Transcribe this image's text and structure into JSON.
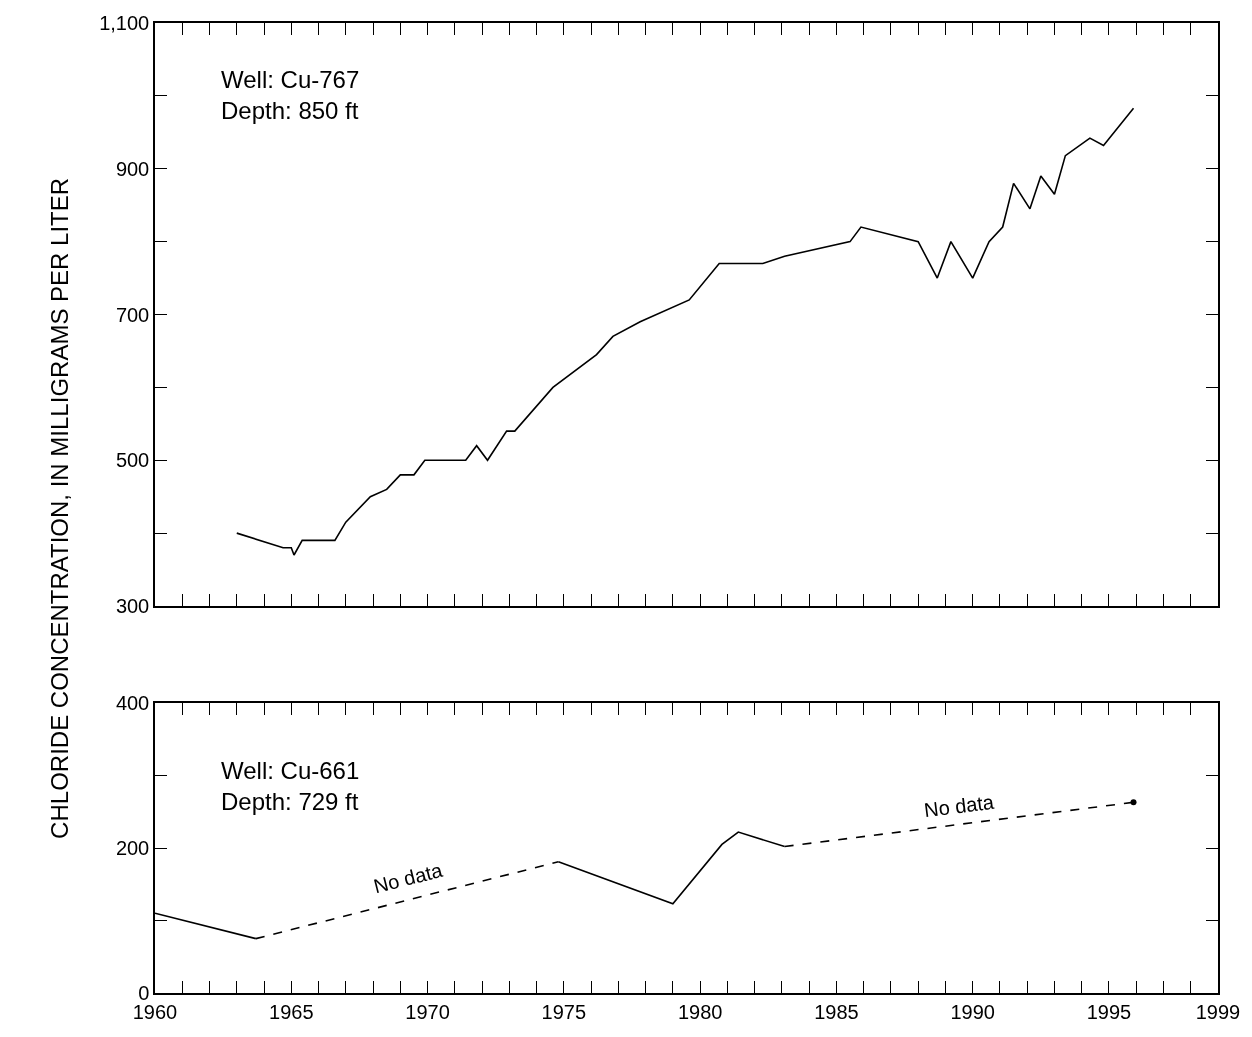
{
  "chart_data": [
    {
      "type": "line",
      "ylabel": "CHLORIDE CONCENTRATION, IN MILLIGRAMS PER LITER",
      "annotations": [
        "Well: Cu-767\nDepth: 850 ft"
      ],
      "xlim": [
        1960,
        1999
      ],
      "ylim": [
        300,
        1100
      ],
      "xticks": [
        {
          "value": 1960,
          "label": null
        },
        {
          "value": 1961,
          "label": null
        },
        {
          "value": 1962,
          "label": null
        },
        {
          "value": 1963,
          "label": null
        },
        {
          "value": 1964,
          "label": null
        },
        {
          "value": 1965,
          "label": null
        },
        {
          "value": 1966,
          "label": null
        },
        {
          "value": 1967,
          "label": null
        },
        {
          "value": 1968,
          "label": null
        },
        {
          "value": 1969,
          "label": null
        },
        {
          "value": 1970,
          "label": null
        },
        {
          "value": 1971,
          "label": null
        },
        {
          "value": 1972,
          "label": null
        },
        {
          "value": 1973,
          "label": null
        },
        {
          "value": 1974,
          "label": null
        },
        {
          "value": 1975,
          "label": null
        },
        {
          "value": 1976,
          "label": null
        },
        {
          "value": 1977,
          "label": null
        },
        {
          "value": 1978,
          "label": null
        },
        {
          "value": 1979,
          "label": null
        },
        {
          "value": 1980,
          "label": null
        },
        {
          "value": 1981,
          "label": null
        },
        {
          "value": 1982,
          "label": null
        },
        {
          "value": 1983,
          "label": null
        },
        {
          "value": 1984,
          "label": null
        },
        {
          "value": 1985,
          "label": null
        },
        {
          "value": 1986,
          "label": null
        },
        {
          "value": 1987,
          "label": null
        },
        {
          "value": 1988,
          "label": null
        },
        {
          "value": 1989,
          "label": null
        },
        {
          "value": 1990,
          "label": null
        },
        {
          "value": 1991,
          "label": null
        },
        {
          "value": 1992,
          "label": null
        },
        {
          "value": 1993,
          "label": null
        },
        {
          "value": 1994,
          "label": null
        },
        {
          "value": 1995,
          "label": null
        },
        {
          "value": 1996,
          "label": null
        },
        {
          "value": 1997,
          "label": null
        },
        {
          "value": 1998,
          "label": null
        },
        {
          "value": 1999,
          "label": null
        }
      ],
      "yticks": [
        300,
        {
          "value": 400,
          "label": null
        },
        500,
        {
          "value": 600,
          "label": null
        },
        700,
        {
          "value": 800,
          "label": null
        },
        900,
        {
          "value": 1000,
          "label": null
        },
        {
          "value": 1100,
          "label": "1,100"
        }
      ],
      "tick_labels": "y",
      "series": [
        {
          "color": "#000000",
          "line_style": "solid",
          "x": [
            1963.0,
            1964.7,
            1965.0,
            1965.1,
            1965.4,
            1966.6,
            1967.0,
            1967.9,
            1968.5,
            1969.0,
            1969.5,
            1969.9,
            1971.4,
            1971.8,
            1972.2,
            1972.9,
            1973.2,
            1974.6,
            1976.2,
            1976.8,
            1977.8,
            1979.6,
            1980.7,
            1982.3,
            1983.1,
            1985.5,
            1985.9,
            1988.0,
            1988.7,
            1989.2,
            1990.0,
            1990.6,
            1991.1,
            1991.5,
            1992.1,
            1992.5,
            1993.0,
            1993.4,
            1994.3,
            1994.8,
            1995.9
          ],
          "values": [
            400,
            380,
            380,
            370,
            390,
            390,
            415,
            450,
            460,
            480,
            480,
            500,
            500,
            520,
            500,
            540,
            540,
            600,
            645,
            670,
            690,
            720,
            770,
            770,
            780,
            800,
            820,
            800,
            750,
            800,
            750,
            800,
            820,
            880,
            845,
            890,
            865,
            918,
            942,
            932,
            983
          ]
        }
      ]
    },
    {
      "type": "line",
      "annotations": [
        "Well: Cu-661\nDepth: 729 ft",
        {
          "text": "No data",
          "x": 1969.3,
          "y": 128
        },
        {
          "text": "No data",
          "x": 1989.5,
          "y": 233
        }
      ],
      "xlim": [
        1960,
        1999
      ],
      "ylim": [
        0,
        400
      ],
      "xticks": [
        1960,
        {
          "value": 1961,
          "label": null
        },
        {
          "value": 1962,
          "label": null
        },
        {
          "value": 1963,
          "label": null
        },
        {
          "value": 1964,
          "label": null
        },
        1965,
        {
          "value": 1966,
          "label": null
        },
        {
          "value": 1967,
          "label": null
        },
        {
          "value": 1968,
          "label": null
        },
        {
          "value": 1969,
          "label": null
        },
        1970,
        {
          "value": 1971,
          "label": null
        },
        {
          "value": 1972,
          "label": null
        },
        {
          "value": 1973,
          "label": null
        },
        {
          "value": 1974,
          "label": null
        },
        1975,
        {
          "value": 1976,
          "label": null
        },
        {
          "value": 1977,
          "label": null
        },
        {
          "value": 1978,
          "label": null
        },
        {
          "value": 1979,
          "label": null
        },
        1980,
        {
          "value": 1981,
          "label": null
        },
        {
          "value": 1982,
          "label": null
        },
        {
          "value": 1983,
          "label": null
        },
        {
          "value": 1984,
          "label": null
        },
        1985,
        {
          "value": 1986,
          "label": null
        },
        {
          "value": 1987,
          "label": null
        },
        {
          "value": 1988,
          "label": null
        },
        {
          "value": 1989,
          "label": null
        },
        1990,
        {
          "value": 1991,
          "label": null
        },
        {
          "value": 1992,
          "label": null
        },
        {
          "value": 1993,
          "label": null
        },
        {
          "value": 1994,
          "label": null
        },
        1995,
        {
          "value": 1996,
          "label": null
        },
        {
          "value": 1997,
          "label": null
        },
        {
          "value": 1998,
          "label": null
        },
        1999
      ],
      "yticks": [
        0,
        {
          "value": 100,
          "label": null
        },
        200,
        {
          "value": 300,
          "label": null
        },
        400
      ],
      "series": [
        {
          "color": "#000000",
          "line_style": "solid",
          "x": [
            1960,
            1963.7
          ],
          "values": [
            110,
            75
          ]
        },
        {
          "color": "#000000",
          "line_style": "dashed",
          "x": [
            1963.7,
            1974.8
          ],
          "values": [
            75,
            181
          ]
        },
        {
          "color": "#000000",
          "line_style": "solid",
          "x": [
            1974.8,
            1979.0,
            1980.8,
            1981.4,
            1983.1
          ],
          "values": [
            181,
            123,
            205,
            222,
            202
          ]
        },
        {
          "color": "#000000",
          "line_style": "dashed",
          "x": [
            1983.1,
            1995.9
          ],
          "values": [
            202,
            263
          ]
        },
        {
          "type": "scatter",
          "color": "#000000",
          "marker": "circle",
          "x": [
            1995.9
          ],
          "values": [
            263
          ]
        }
      ]
    }
  ]
}
